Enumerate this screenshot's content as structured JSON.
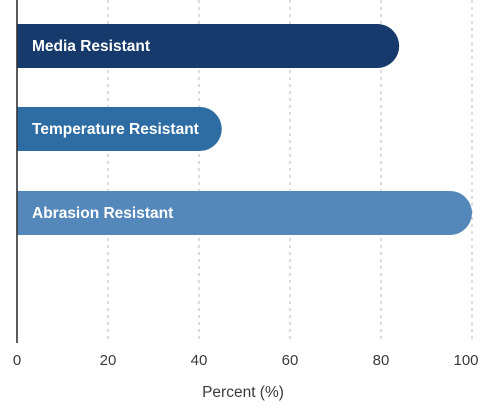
{
  "chart_data": {
    "type": "bar",
    "orientation": "horizontal",
    "categories": [
      "Media Resistant",
      "Temperature Resistant",
      "Abrasion Resistant"
    ],
    "values": [
      84,
      45,
      100
    ],
    "bar_colors": [
      "#163a6b",
      "#2e6da4",
      "#5588ba"
    ],
    "xlabel": "Percent (%)",
    "ylabel": "",
    "xlim": [
      0,
      100
    ],
    "xticks": [
      "0",
      "20",
      "40",
      "60",
      "80",
      "100"
    ],
    "grid": "vertical dashed"
  }
}
